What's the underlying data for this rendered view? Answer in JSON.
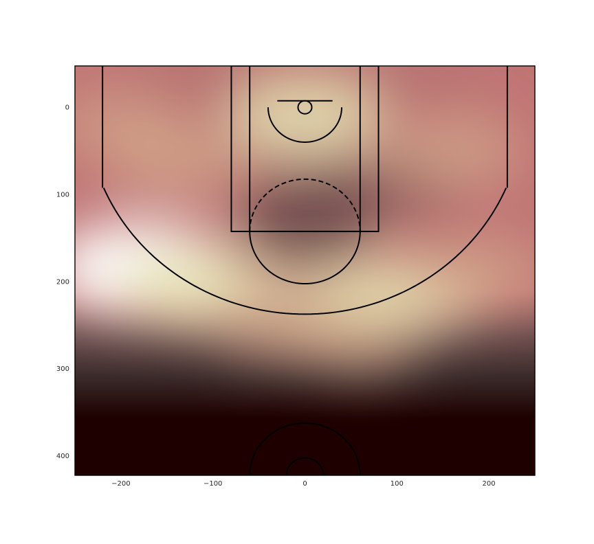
{
  "chart_data": {
    "type": "heatmap",
    "title": "",
    "xlabel": "",
    "ylabel": "",
    "xlim": [
      -250,
      250
    ],
    "ylim": [
      422.5,
      -47.5
    ],
    "y_axis_inverted": true,
    "grid": false,
    "legend": "none",
    "colormap": "pink",
    "colormap_stops": [
      "#1e0000",
      "#3a2a2a",
      "#6e4e4e",
      "#9d6565",
      "#c07575",
      "#d2a68a",
      "#e6e4b3",
      "#ffffff"
    ],
    "xticks": [
      -200,
      -100,
      0,
      100,
      200
    ],
    "yticks": [
      0,
      100,
      200,
      300,
      400
    ],
    "xtick_labels": [
      "−200",
      "−100",
      "0",
      "100",
      "200"
    ],
    "ytick_labels": [
      "0",
      "100",
      "200",
      "300",
      "400"
    ],
    "density_hotspots": [
      {
        "x": -180,
        "y": 185,
        "intensity": 1.0
      },
      {
        "x": -120,
        "y": 205,
        "intensity": 0.75
      },
      {
        "x": 110,
        "y": 215,
        "intensity": 0.65
      },
      {
        "x": 30,
        "y": 230,
        "intensity": 0.6
      },
      {
        "x": -30,
        "y": 250,
        "intensity": 0.45
      },
      {
        "x": 190,
        "y": 190,
        "intensity": 0.5
      },
      {
        "x": 0,
        "y": 10,
        "intensity": 0.75
      },
      {
        "x": -140,
        "y": 60,
        "intensity": 0.55
      },
      {
        "x": 160,
        "y": 50,
        "intensity": 0.55
      },
      {
        "x": -200,
        "y": 20,
        "intensity": 0.45
      },
      {
        "x": 60,
        "y": 270,
        "intensity": 0.35
      }
    ],
    "court": {
      "hoop_radius": 7.5,
      "backboard": {
        "x1": -30,
        "x2": 30,
        "y": -7.5
      },
      "paint_outer": {
        "x": -80,
        "y": -47.5,
        "width": 160,
        "height": 190
      },
      "paint_inner": {
        "x": -60,
        "y": -47.5,
        "width": 120,
        "height": 190
      },
      "free_throw_center_y": 142.5,
      "free_throw_radius": 60,
      "restricted_radius": 40,
      "three_point_corner_x": 220,
      "three_point_corner_y_end": 92.5,
      "three_point_radius": 237.5,
      "center_outer_radius": 60,
      "center_inner_radius": 20,
      "center_y": 422.5
    }
  }
}
